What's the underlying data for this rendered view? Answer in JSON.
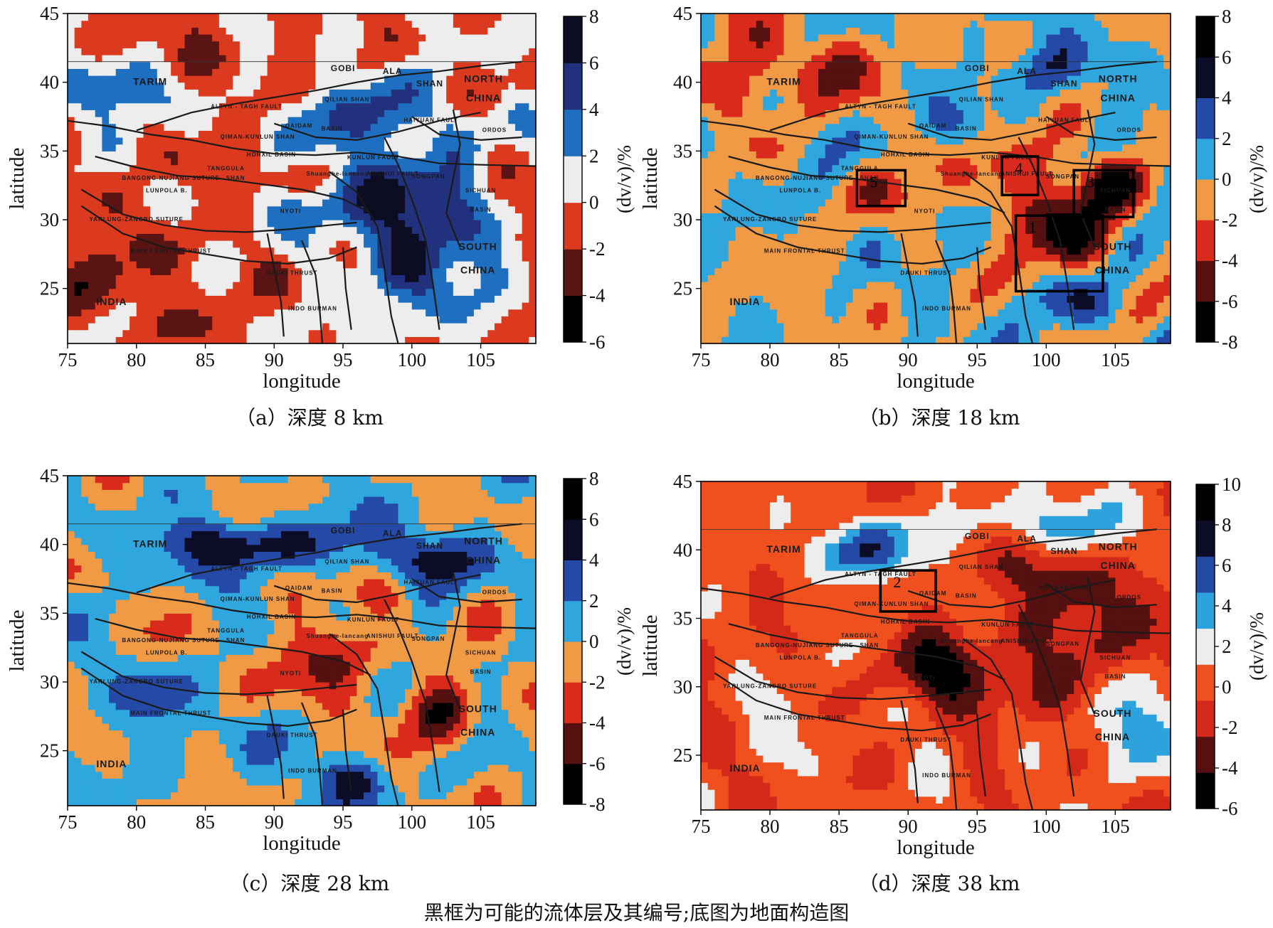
{
  "figure_note": "黑框为可能的流体层及其编号;底图为地面构造图",
  "map_labels": [
    {
      "text": "TARIM",
      "lon": 81.0,
      "lat": 39.8,
      "size": "large"
    },
    {
      "text": "NORTH",
      "lon": 105.2,
      "lat": 40.0,
      "size": "large"
    },
    {
      "text": "CHINA",
      "lon": 105.2,
      "lat": 38.6,
      "size": "large"
    },
    {
      "text": "SOUTH",
      "lon": 104.8,
      "lat": 27.8,
      "size": "large"
    },
    {
      "text": "CHINA",
      "lon": 104.8,
      "lat": 26.1,
      "size": "large"
    },
    {
      "text": "INDIA",
      "lon": 78.2,
      "lat": 23.8,
      "size": "large"
    },
    {
      "text": "GOBI",
      "lon": 95.0,
      "lat": 40.8,
      "size": "medium"
    },
    {
      "text": "ALA",
      "lon": 98.6,
      "lat": 40.6,
      "size": "medium"
    },
    {
      "text": "SHAN",
      "lon": 101.3,
      "lat": 39.7,
      "size": "medium"
    },
    {
      "text": "ALTYN - TAGH FAULT",
      "lon": 88.0,
      "lat": 38.1,
      "size": "small"
    },
    {
      "text": "QILIAN SHAN",
      "lon": 95.3,
      "lat": 38.6,
      "size": "small"
    },
    {
      "text": "QAIDAM",
      "lon": 91.8,
      "lat": 36.7,
      "size": "small"
    },
    {
      "text": "BASIN",
      "lon": 94.2,
      "lat": 36.5,
      "size": "small"
    },
    {
      "text": "QIMAN-KUNLUN SHAN",
      "lon": 88.8,
      "lat": 35.9,
      "size": "small"
    },
    {
      "text": "HAIYUAN FAULT",
      "lon": 101.4,
      "lat": 37.1,
      "size": "small"
    },
    {
      "text": "ORDOS",
      "lon": 106.0,
      "lat": 36.4,
      "size": "small"
    },
    {
      "text": "HOHXIL BASIN",
      "lon": 89.8,
      "lat": 34.6,
      "size": "small"
    },
    {
      "text": "KUNLUN FAULT",
      "lon": 97.2,
      "lat": 34.4,
      "size": "small"
    },
    {
      "text": "BANGONG-NUJIANG SUTURE",
      "lon": 82.5,
      "lat": 32.9,
      "size": "small"
    },
    {
      "text": "TANGGULA",
      "lon": 86.5,
      "lat": 33.6,
      "size": "small"
    },
    {
      "text": "SHAN",
      "lon": 87.2,
      "lat": 32.9,
      "size": "small"
    },
    {
      "text": "LUNPOLA B.",
      "lon": 82.2,
      "lat": 32.0,
      "size": "small"
    },
    {
      "text": "SICHUAN",
      "lon": 105.0,
      "lat": 32.0,
      "size": "small"
    },
    {
      "text": "BASIN",
      "lon": 105.0,
      "lat": 30.6,
      "size": "small"
    },
    {
      "text": "YARLUNG-ZANGBO SUTURE",
      "lon": 80.0,
      "lat": 29.9,
      "size": "small"
    },
    {
      "text": "MAIN FRONTAL THRUST",
      "lon": 82.5,
      "lat": 27.6,
      "size": "small"
    },
    {
      "text": "DAUKI THRUST",
      "lon": 91.3,
      "lat": 26.0,
      "size": "small"
    },
    {
      "text": "INDO BURMAN",
      "lon": 92.8,
      "lat": 23.4,
      "size": "small"
    },
    {
      "text": "SONGPAN",
      "lon": 101.2,
      "lat": 33.0,
      "size": "small"
    },
    {
      "text": "Shuanghe-lancang",
      "lon": 94.6,
      "lat": 33.2,
      "size": "small"
    },
    {
      "text": "NYOTI",
      "lon": 91.2,
      "lat": 30.5,
      "size": "small"
    },
    {
      "text": "ANISHUI FAULT",
      "lon": 98.6,
      "lat": 33.2,
      "size": "small"
    }
  ],
  "colors": {
    "scale_a": [
      "#000000",
      "#5a1414",
      "#dc3a1e",
      "#ededed",
      "#1f6fc0",
      "#22317e",
      "#0c0c22"
    ],
    "scale_b": [
      "#000000",
      "#55100f",
      "#d92a1c",
      "#f09a45",
      "#2fa7de",
      "#2449a6",
      "#0c0c26",
      "#000000"
    ],
    "scale_d": [
      "#000000",
      "#55100f",
      "#d42819",
      "#f0501e",
      "#ededed",
      "#2da3dd",
      "#2349a5",
      "#0c0c26",
      "#000000"
    ],
    "fault_line": "#1a1a1a",
    "box_stroke": "#000000"
  },
  "chart_data": [
    {
      "type": "heatmap",
      "panel": "a",
      "title": "（a）深度 8 km",
      "xlabel": "longitude",
      "ylabel": "latitude",
      "xlim": [
        75,
        109
      ],
      "ylim": [
        21,
        45
      ],
      "xticks": [
        75,
        80,
        85,
        90,
        95,
        100,
        105
      ],
      "yticks": [
        25,
        30,
        35,
        40,
        45
      ],
      "colorbar_label": "(dv/v)/%",
      "colorbar_ticks": [
        8,
        6,
        4,
        2,
        0,
        -2,
        -4,
        -6
      ],
      "scale": "scale_a",
      "color_range": [
        -6,
        8
      ],
      "seed": 11,
      "blobs": [
        {
          "lon": 101,
          "lat": 28.5,
          "rx": 4.5,
          "ry": 5,
          "v": 6
        },
        {
          "lon": 97.5,
          "lat": 32,
          "rx": 3.5,
          "ry": 3,
          "v": 4
        },
        {
          "lon": 97,
          "lat": 37.5,
          "rx": 6,
          "ry": 2.5,
          "v": 4
        },
        {
          "lon": 78.5,
          "lat": 39.5,
          "rx": 3.5,
          "ry": 2.5,
          "v": 4
        },
        {
          "lon": 92,
          "lat": 31,
          "rx": 2.5,
          "ry": 1.5,
          "v": 3
        },
        {
          "lon": 81,
          "lat": 24.5,
          "rx": 6,
          "ry": 3.5,
          "v": -2
        },
        {
          "lon": 84,
          "lat": 42,
          "rx": 5,
          "ry": 2.5,
          "v": -2
        },
        {
          "lon": 86,
          "lat": 33.5,
          "rx": 4,
          "ry": 2,
          "v": -2
        },
        {
          "lon": 77,
          "lat": 29,
          "rx": 3,
          "ry": 3,
          "v": -2
        }
      ],
      "boxes": []
    },
    {
      "type": "heatmap",
      "panel": "b",
      "title": "（b）深度 18 km",
      "xlabel": "longitude",
      "ylabel": "latitude",
      "xlim": [
        75,
        109
      ],
      "ylim": [
        21,
        45
      ],
      "xticks": [
        75,
        80,
        85,
        90,
        95,
        100,
        105
      ],
      "yticks": [
        25,
        30,
        35,
        40,
        45
      ],
      "colorbar_label": "(dv/v)/%",
      "colorbar_ticks": [
        8,
        6,
        4,
        2,
        0,
        -2,
        -4,
        -6,
        -8
      ],
      "scale": "scale_b",
      "color_range": [
        -8,
        8
      ],
      "seed": 23,
      "blobs": [
        {
          "lon": 101,
          "lat": 29.5,
          "rx": 3.5,
          "ry": 3,
          "v": -6.5
        },
        {
          "lon": 104.5,
          "lat": 32.5,
          "rx": 2.5,
          "ry": 1.8,
          "v": -6
        },
        {
          "lon": 88.5,
          "lat": 32.2,
          "rx": 2.5,
          "ry": 1.8,
          "v": -4
        },
        {
          "lon": 78,
          "lat": 40,
          "rx": 3,
          "ry": 2.5,
          "v": -5
        },
        {
          "lon": 85,
          "lat": 41.5,
          "rx": 4,
          "ry": 2.5,
          "v": -3.5
        },
        {
          "lon": 98,
          "lat": 34,
          "rx": 3,
          "ry": 2.5,
          "v": -3
        },
        {
          "lon": 81,
          "lat": 25,
          "rx": 5,
          "ry": 3,
          "v": -1
        },
        {
          "lon": 101,
          "lat": 24,
          "rx": 2.5,
          "ry": 2,
          "v": 3
        },
        {
          "lon": 100,
          "lat": 41,
          "rx": 3,
          "ry": 2,
          "v": 3
        },
        {
          "lon": 92,
          "lat": 37,
          "rx": 3,
          "ry": 1.5,
          "v": 1
        }
      ],
      "boxes": [
        {
          "label": "1",
          "lon_min": 97.8,
          "lon_max": 104.1,
          "lat_min": 24.8,
          "lat_max": 30.3
        },
        {
          "label": "3",
          "lon_min": 102.0,
          "lon_max": 106.3,
          "lat_min": 30.2,
          "lat_max": 33.6
        },
        {
          "label": "4",
          "lon_min": 96.8,
          "lon_max": 99.4,
          "lat_min": 31.8,
          "lat_max": 34.6
        },
        {
          "label": "5",
          "lon_min": 86.3,
          "lon_max": 89.8,
          "lat_min": 31.0,
          "lat_max": 33.6
        }
      ]
    },
    {
      "type": "heatmap",
      "panel": "c",
      "title": "（c）深度 28 km",
      "xlabel": "longitude",
      "ylabel": "latitude",
      "xlim": [
        75,
        109
      ],
      "ylim": [
        21,
        45
      ],
      "xticks": [
        75,
        80,
        85,
        90,
        95,
        100,
        105
      ],
      "yticks": [
        25,
        30,
        35,
        40,
        45
      ],
      "colorbar_label": "(dv/v)/%",
      "colorbar_ticks": [
        8,
        6,
        4,
        2,
        0,
        -2,
        -4,
        -6,
        -8
      ],
      "scale": "scale_b",
      "color_range": [
        -8,
        8
      ],
      "seed": 37,
      "blobs": [
        {
          "lon": 102,
          "lat": 27.5,
          "rx": 2.5,
          "ry": 2.5,
          "v": -6
        },
        {
          "lon": 93.5,
          "lat": 31.5,
          "rx": 4.5,
          "ry": 3,
          "v": -4
        },
        {
          "lon": 97.5,
          "lat": 36.5,
          "rx": 2,
          "ry": 1.5,
          "v": -3
        },
        {
          "lon": 88,
          "lat": 40,
          "rx": 7,
          "ry": 1.8,
          "v": 5.5
        },
        {
          "lon": 101,
          "lat": 39,
          "rx": 3.5,
          "ry": 2,
          "v": 5
        },
        {
          "lon": 96,
          "lat": 23,
          "rx": 2.5,
          "ry": 2,
          "v": 4
        },
        {
          "lon": 82,
          "lat": 28,
          "rx": 6,
          "ry": 3,
          "v": 1.5
        }
      ],
      "boxes": []
    },
    {
      "type": "heatmap",
      "panel": "d",
      "title": "（d）深度 38 km",
      "xlabel": "longitude",
      "ylabel": "latitude",
      "xlim": [
        75,
        109
      ],
      "ylim": [
        21,
        45
      ],
      "xticks": [
        75,
        80,
        85,
        90,
        95,
        100,
        105
      ],
      "yticks": [
        25,
        30,
        35,
        40,
        45
      ],
      "colorbar_label": "(dv/v)/%",
      "colorbar_ticks": [
        10,
        8,
        6,
        4,
        2,
        0,
        -2,
        -4,
        -6
      ],
      "scale": "scale_d",
      "color_range": [
        -6,
        10
      ],
      "seed": 53,
      "blobs": [
        {
          "lon": 92,
          "lat": 31,
          "rx": 3,
          "ry": 2.5,
          "v": -4
        },
        {
          "lon": 102,
          "lat": 34,
          "rx": 5,
          "ry": 4,
          "v": -3
        },
        {
          "lon": 100,
          "lat": 38.5,
          "rx": 3,
          "ry": 2,
          "v": -3
        },
        {
          "lon": 96.5,
          "lat": 31,
          "rx": 3,
          "ry": 3,
          "v": -2.5
        },
        {
          "lon": 86,
          "lat": 40,
          "rx": 4.5,
          "ry": 2,
          "v": 5
        },
        {
          "lon": 99,
          "lat": 42,
          "rx": 5,
          "ry": 2,
          "v": 4
        },
        {
          "lon": 80,
          "lat": 26.5,
          "rx": 4,
          "ry": 3,
          "v": 1
        },
        {
          "lon": 106,
          "lat": 26,
          "rx": 3,
          "ry": 3,
          "v": 3.5
        }
      ],
      "boxes": [
        {
          "label": "2",
          "lon_min": 88.0,
          "lon_max": 92.0,
          "lat_min": 35.5,
          "lat_max": 38.5
        }
      ]
    }
  ]
}
